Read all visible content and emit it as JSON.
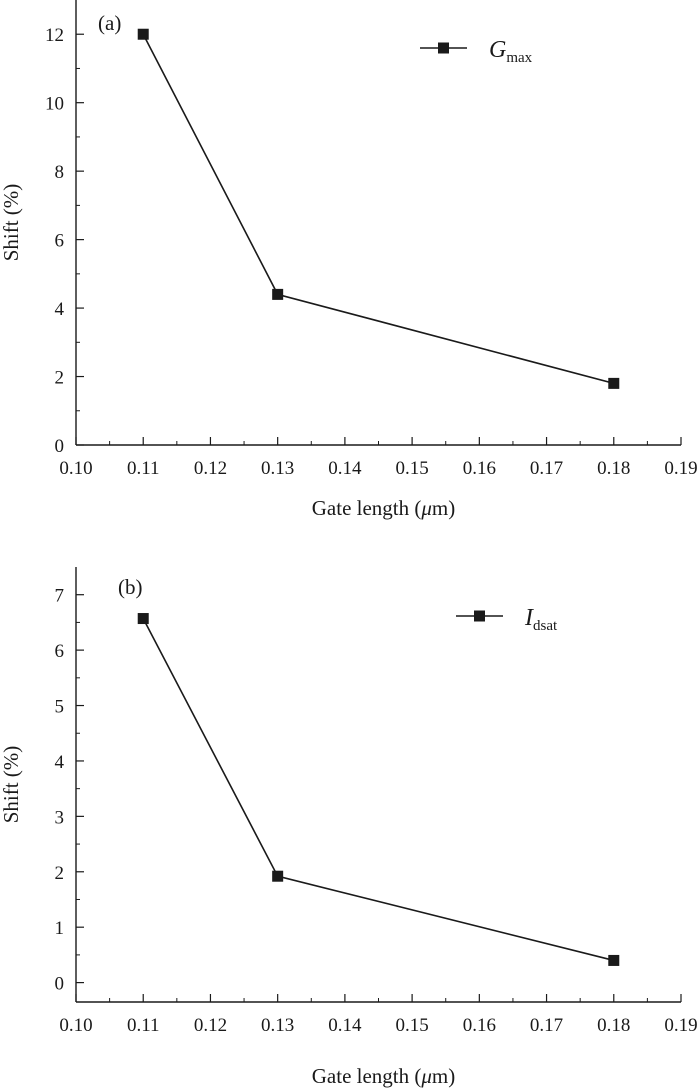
{
  "chart_data": [
    {
      "type": "line",
      "panel_label": "(a)",
      "xlabel_main": "Gate length (",
      "xlabel_mu": "μ",
      "xlabel_rest": "m)",
      "ylabel": "Shift (%)",
      "xlim": [
        0.1,
        0.19
      ],
      "ylim": [
        0,
        13
      ],
      "x_ticks": [
        0.1,
        0.11,
        0.12,
        0.13,
        0.14,
        0.15,
        0.16,
        0.17,
        0.18,
        0.19
      ],
      "x_tick_labels": [
        "0.10",
        "0.11",
        "0.12",
        "0.13",
        "0.14",
        "0.15",
        "0.16",
        "0.17",
        "0.18",
        "0.19"
      ],
      "y_ticks": [
        0,
        2,
        4,
        6,
        8,
        10,
        12
      ],
      "y_tick_labels": [
        "0",
        "2",
        "4",
        "6",
        "8",
        "10",
        "12"
      ],
      "legend_placement": "top-right",
      "series": [
        {
          "name": "Gmax",
          "legend_main": "G",
          "legend_sub": "max",
          "x": [
            0.11,
            0.13,
            0.18
          ],
          "y": [
            12.0,
            4.4,
            1.8
          ],
          "color": "#1a1a1a",
          "marker": "square"
        }
      ]
    },
    {
      "type": "line",
      "panel_label": "(b)",
      "xlabel_main": "Gate length (",
      "xlabel_mu": "μ",
      "xlabel_rest": "m)",
      "ylabel": "Shift (%)",
      "xlim": [
        0.1,
        0.19
      ],
      "ylim": [
        -0.35,
        7.5
      ],
      "x_ticks": [
        0.1,
        0.11,
        0.12,
        0.13,
        0.14,
        0.15,
        0.16,
        0.17,
        0.18,
        0.19
      ],
      "x_tick_labels": [
        "0.10",
        "0.11",
        "0.12",
        "0.13",
        "0.14",
        "0.15",
        "0.16",
        "0.17",
        "0.18",
        "0.19"
      ],
      "y_ticks": [
        0,
        1,
        2,
        3,
        4,
        5,
        6,
        7
      ],
      "y_tick_labels": [
        "0",
        "1",
        "2",
        "3",
        "4",
        "5",
        "6",
        "7"
      ],
      "legend_placement": "top-right",
      "series": [
        {
          "name": "Idsat",
          "legend_main": "I",
          "legend_sub": "dsat",
          "x": [
            0.11,
            0.13,
            0.18
          ],
          "y": [
            6.57,
            1.92,
            0.4
          ],
          "color": "#1a1a1a",
          "marker": "square"
        }
      ]
    }
  ]
}
